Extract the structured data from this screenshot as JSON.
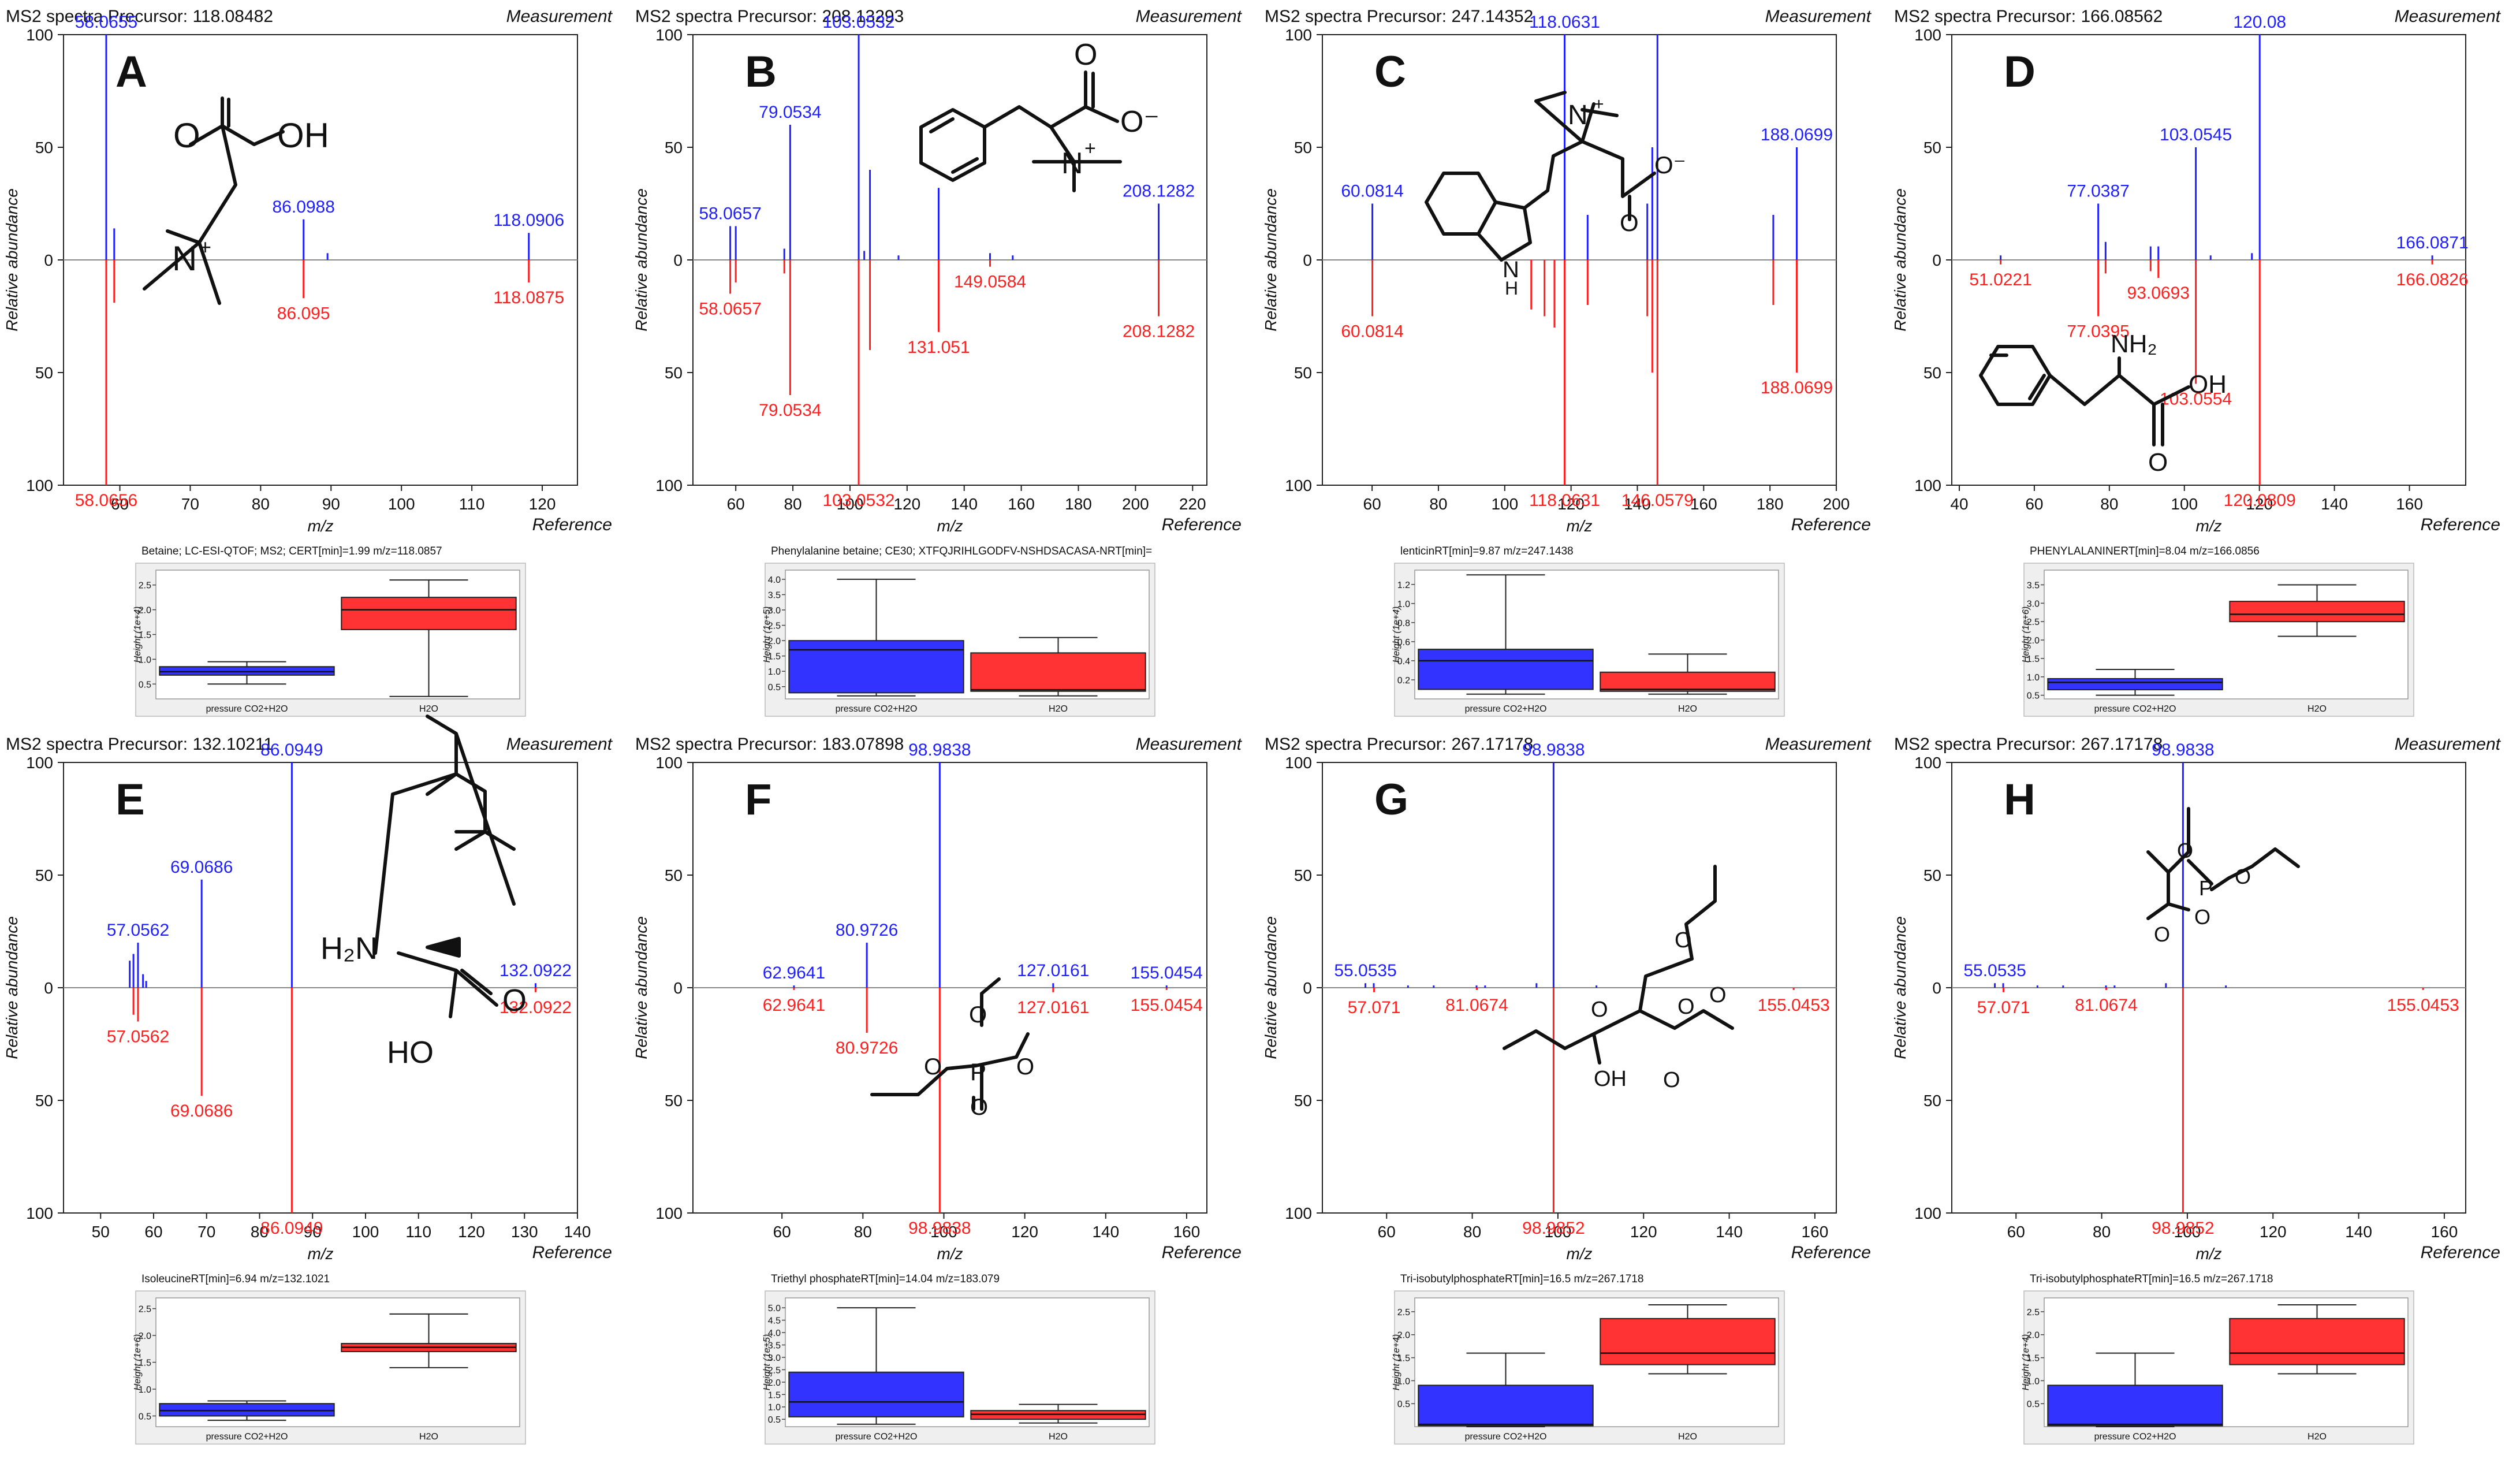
{
  "colors": {
    "measurement": "#1f1fff",
    "reference": "#ff1f1f",
    "group1": "#3333ff",
    "group2": "#ff3333",
    "axis": "#222222",
    "plotBg": "#efefef",
    "zero": "#888888"
  },
  "labels": {
    "measurement": "Measurement",
    "reference": "Reference",
    "xlabel": "m/z",
    "ylabel": "Relative abundance",
    "boxYlabel": "Height",
    "group1": "pressure CO2+H2O",
    "group2": "H2O"
  },
  "chart_data": [
    {
      "panel": "A",
      "type": "bar",
      "title": "MS2 spectra Precursor: 118.08482",
      "xlim": [
        52,
        125
      ],
      "xticks": [
        60,
        70,
        80,
        90,
        100,
        110,
        120
      ],
      "ylim": [
        -100,
        100
      ],
      "yticks": [
        100,
        50,
        0,
        50,
        100
      ],
      "measurement": [
        {
          "mz": 58.0655,
          "int": 100,
          "label": "58.0655"
        },
        {
          "mz": 59.2,
          "int": 14
        },
        {
          "mz": 86.0988,
          "int": 18,
          "label": "86.0988"
        },
        {
          "mz": 89.5,
          "int": 3
        },
        {
          "mz": 118.0906,
          "int": 12,
          "label": "118.0906"
        }
      ],
      "reference": [
        {
          "mz": 58.0656,
          "int": 100,
          "label": "58.0656"
        },
        {
          "mz": 59.2,
          "int": 19
        },
        {
          "mz": 86.095,
          "int": 17,
          "label": "86.095"
        },
        {
          "mz": 118.0875,
          "int": 10,
          "label": "118.0875"
        }
      ],
      "compound": "Betaine; LC-ESI-QTOF; MS2; CERT[min]=1.99 m/z=118.0857",
      "box": {
        "ylabel_unit": "(1e+4)",
        "yticks": [
          "0.5",
          "1.0",
          "1.5",
          "2.0",
          "2.5"
        ],
        "ylim": [
          0.2,
          2.8
        ],
        "groups": [
          {
            "name": "pressure CO2+H2O",
            "min": 0.5,
            "q1": 0.68,
            "median": 0.75,
            "q3": 0.85,
            "max": 0.95
          },
          {
            "name": "H2O",
            "min": 0.25,
            "q1": 1.6,
            "median": 2.0,
            "q3": 2.25,
            "max": 2.6
          }
        ]
      }
    },
    {
      "panel": "B",
      "type": "bar",
      "title": "MS2 spectra Precursor: 208.13293",
      "xlim": [
        45,
        225
      ],
      "xticks": [
        60,
        80,
        100,
        120,
        140,
        160,
        180,
        200,
        220
      ],
      "ylim": [
        -100,
        100
      ],
      "yticks": [
        100,
        50,
        0,
        50,
        100
      ],
      "measurement": [
        {
          "mz": 58.0657,
          "int": 15,
          "label": "58.0657"
        },
        {
          "mz": 60,
          "int": 15
        },
        {
          "mz": 77,
          "int": 5
        },
        {
          "mz": 79.0534,
          "int": 60,
          "label": "79.0534"
        },
        {
          "mz": 103.0532,
          "int": 100,
          "label": "103.0532"
        },
        {
          "mz": 105,
          "int": 4
        },
        {
          "mz": 107,
          "int": 40
        },
        {
          "mz": 117,
          "int": 2
        },
        {
          "mz": 131.051,
          "int": 32
        },
        {
          "mz": 149.0584,
          "int": 3
        },
        {
          "mz": 157,
          "int": 2
        },
        {
          "mz": 208.1282,
          "int": 25,
          "label": "208.1282"
        }
      ],
      "reference": [
        {
          "mz": 58.0657,
          "int": 15,
          "label": "58.0657"
        },
        {
          "mz": 60,
          "int": 10
        },
        {
          "mz": 77,
          "int": 6
        },
        {
          "mz": 79.0534,
          "int": 60,
          "label": "79.0534"
        },
        {
          "mz": 103.0532,
          "int": 100,
          "label": "103.0532"
        },
        {
          "mz": 107,
          "int": 40
        },
        {
          "mz": 131.051,
          "int": 32,
          "label": "131.051"
        },
        {
          "mz": 149.0584,
          "int": 3,
          "label": "149.0584"
        },
        {
          "mz": 208.1282,
          "int": 25,
          "label": "208.1282"
        }
      ],
      "compound": "Phenylalanine betaine; CE30; XTFQJRIHLGODFV-NSHDSACASA-NRT[min]=",
      "box": {
        "ylabel_unit": "(1e+5)",
        "yticks": [
          "0.5",
          "1.0",
          "1.5",
          "2.0",
          "2.5",
          "3.0",
          "3.5",
          "4.0"
        ],
        "ylim": [
          0.1,
          4.3
        ],
        "groups": [
          {
            "name": "pressure CO2+H2O",
            "min": 0.2,
            "q1": 0.3,
            "median": 1.7,
            "q3": 2.0,
            "max": 4.0
          },
          {
            "name": "H2O",
            "min": 0.2,
            "q1": 0.35,
            "median": 0.4,
            "q3": 1.6,
            "max": 2.1
          }
        ]
      }
    },
    {
      "panel": "C",
      "type": "bar",
      "title": "MS2 spectra Precursor: 247.14352",
      "xlim": [
        45,
        200
      ],
      "xticks": [
        60,
        80,
        100,
        120,
        140,
        160,
        180,
        200
      ],
      "ylim": [
        -100,
        100
      ],
      "yticks": [
        100,
        50,
        0,
        50,
        100
      ],
      "measurement": [
        {
          "mz": 60.0814,
          "int": 25,
          "label": "60.0814"
        },
        {
          "mz": 118.0631,
          "int": 100,
          "label": "118.0631"
        },
        {
          "mz": 125,
          "int": 20
        },
        {
          "mz": 143,
          "int": 25
        },
        {
          "mz": 144.5,
          "int": 50
        },
        {
          "mz": 146.0579,
          "int": 100
        },
        {
          "mz": 181,
          "int": 20
        },
        {
          "mz": 188.0699,
          "int": 50,
          "label": "188.0699"
        }
      ],
      "reference": [
        {
          "mz": 60.0814,
          "int": 25,
          "label": "60.0814"
        },
        {
          "mz": 108,
          "int": 22
        },
        {
          "mz": 112,
          "int": 25
        },
        {
          "mz": 115,
          "int": 30
        },
        {
          "mz": 118.0631,
          "int": 100,
          "label": "118.0631"
        },
        {
          "mz": 125,
          "int": 20
        },
        {
          "mz": 143,
          "int": 25
        },
        {
          "mz": 144.5,
          "int": 50
        },
        {
          "mz": 146.0579,
          "int": 100,
          "label": "146.0579"
        },
        {
          "mz": 181,
          "int": 20
        },
        {
          "mz": 188.0699,
          "int": 50,
          "label": "188.0699"
        }
      ],
      "compound": "lenticinRT[min]=9.87 m/z=247.1438",
      "box": {
        "ylabel_unit": "(1e+4)",
        "yticks": [
          "0.2",
          "0.4",
          "0.6",
          "0.8",
          "1.0",
          "1.2"
        ],
        "ylim": [
          0.0,
          1.35
        ],
        "groups": [
          {
            "name": "pressure CO2+H2O",
            "min": 0.05,
            "q1": 0.1,
            "median": 0.4,
            "q3": 0.52,
            "max": 1.3
          },
          {
            "name": "H2O",
            "min": 0.05,
            "q1": 0.08,
            "median": 0.1,
            "q3": 0.28,
            "max": 0.47
          }
        ]
      }
    },
    {
      "panel": "D",
      "type": "bar",
      "title": "MS2 spectra Precursor: 166.08562",
      "xlim": [
        38,
        175
      ],
      "xticks": [
        40,
        60,
        80,
        100,
        120,
        140,
        160
      ],
      "ylim": [
        -100,
        100
      ],
      "yticks": [
        100,
        50,
        0,
        50,
        100
      ],
      "measurement": [
        {
          "mz": 51.0221,
          "int": 2
        },
        {
          "mz": 77.0387,
          "int": 25,
          "label": "77.0387"
        },
        {
          "mz": 79,
          "int": 8
        },
        {
          "mz": 91,
          "int": 6
        },
        {
          "mz": 93.0693,
          "int": 6
        },
        {
          "mz": 103.0545,
          "int": 50,
          "label": "103.0545"
        },
        {
          "mz": 107,
          "int": 2
        },
        {
          "mz": 118,
          "int": 3
        },
        {
          "mz": 120.08,
          "int": 100,
          "label": "120.08"
        },
        {
          "mz": 166.0871,
          "int": 2,
          "label": "166.0871"
        }
      ],
      "reference": [
        {
          "mz": 51.0221,
          "int": 2,
          "label": "51.0221"
        },
        {
          "mz": 77.0395,
          "int": 25,
          "label": "77.0395"
        },
        {
          "mz": 79,
          "int": 6
        },
        {
          "mz": 91,
          "int": 5
        },
        {
          "mz": 93.0693,
          "int": 8,
          "label": "93.0693"
        },
        {
          "mz": 103.0554,
          "int": 55,
          "label": "103.0554"
        },
        {
          "mz": 120.0809,
          "int": 100,
          "label": "120.0809"
        },
        {
          "mz": 166.0826,
          "int": 2,
          "label": "166.0826"
        }
      ],
      "compound": "PHENYLALANINERT[min]=8.04 m/z=166.0856",
      "box": {
        "ylabel_unit": "(1e+6)",
        "yticks": [
          "0.5",
          "1.0",
          "1.5",
          "2.0",
          "2.5",
          "3.0",
          "3.5"
        ],
        "ylim": [
          0.4,
          3.9
        ],
        "groups": [
          {
            "name": "pressure CO2+H2O",
            "min": 0.5,
            "q1": 0.65,
            "median": 0.85,
            "q3": 0.95,
            "max": 1.2
          },
          {
            "name": "H2O",
            "min": 2.1,
            "q1": 2.5,
            "median": 2.7,
            "q3": 3.05,
            "max": 3.5
          }
        ]
      }
    },
    {
      "panel": "E",
      "type": "bar",
      "title": "MS2 spectra Precursor: 132.10211",
      "xlim": [
        43,
        140
      ],
      "xticks": [
        50,
        60,
        70,
        80,
        90,
        100,
        110,
        120,
        130,
        140
      ],
      "ylim": [
        -100,
        100
      ],
      "yticks": [
        100,
        50,
        0,
        50,
        100
      ],
      "measurement": [
        {
          "mz": 55.5,
          "int": 12
        },
        {
          "mz": 56.2,
          "int": 15
        },
        {
          "mz": 57.0562,
          "int": 20,
          "label": "57.0562"
        },
        {
          "mz": 58,
          "int": 6
        },
        {
          "mz": 58.6,
          "int": 3
        },
        {
          "mz": 69.0686,
          "int": 48,
          "label": "69.0686"
        },
        {
          "mz": 86.0949,
          "int": 100,
          "label": "86.0949"
        },
        {
          "mz": 132.0922,
          "int": 2,
          "label": "132.0922"
        }
      ],
      "reference": [
        {
          "mz": 56.2,
          "int": 12
        },
        {
          "mz": 57.0562,
          "int": 15,
          "label": "57.0562"
        },
        {
          "mz": 69.0686,
          "int": 48,
          "label": "69.0686"
        },
        {
          "mz": 86.0949,
          "int": 100,
          "label": "86.0949"
        },
        {
          "mz": 132.0922,
          "int": 2,
          "label": "132.0922"
        }
      ],
      "compound": "IsoleucineRT[min]=6.94 m/z=132.1021",
      "box": {
        "ylabel_unit": "(1e+6)",
        "yticks": [
          "0.5",
          "1.0",
          "1.5",
          "2.0",
          "2.5"
        ],
        "ylim": [
          0.3,
          2.7
        ],
        "groups": [
          {
            "name": "pressure CO2+H2O",
            "min": 0.42,
            "q1": 0.5,
            "median": 0.6,
            "q3": 0.73,
            "max": 0.78
          },
          {
            "name": "H2O",
            "min": 1.4,
            "q1": 1.7,
            "median": 1.78,
            "q3": 1.85,
            "max": 2.4
          }
        ]
      }
    },
    {
      "panel": "F",
      "type": "bar",
      "title": "MS2 spectra Precursor: 183.07898",
      "xlim": [
        38,
        165
      ],
      "xticks": [
        60,
        80,
        100,
        120,
        140,
        160
      ],
      "ylim": [
        -100,
        100
      ],
      "yticks": [
        100,
        50,
        0,
        50,
        100
      ],
      "measurement": [
        {
          "mz": 62.9641,
          "int": 1,
          "label": "62.9641"
        },
        {
          "mz": 80.9726,
          "int": 20,
          "label": "80.9726"
        },
        {
          "mz": 98.9838,
          "int": 100,
          "label": "98.9838"
        },
        {
          "mz": 127.0161,
          "int": 2,
          "label": "127.0161"
        },
        {
          "mz": 155.0454,
          "int": 1,
          "label": "155.0454"
        }
      ],
      "reference": [
        {
          "mz": 62.9641,
          "int": 1,
          "label": "62.9641"
        },
        {
          "mz": 80.9726,
          "int": 20,
          "label": "80.9726"
        },
        {
          "mz": 98.9838,
          "int": 100,
          "label": "98.9838"
        },
        {
          "mz": 127.0161,
          "int": 2,
          "label": "127.0161"
        },
        {
          "mz": 155.0454,
          "int": 1,
          "label": "155.0454"
        }
      ],
      "compound": "Triethyl phosphateRT[min]=14.04 m/z=183.079",
      "box": {
        "ylabel_unit": "(1e+5)",
        "yticks": [
          "0.5",
          "1.0",
          "1.5",
          "2.0",
          "2.5",
          "3.0",
          "3.5",
          "4.0",
          "4.5",
          "5.0"
        ],
        "ylim": [
          0.2,
          5.4
        ],
        "groups": [
          {
            "name": "pressure CO2+H2O",
            "min": 0.3,
            "q1": 0.6,
            "median": 1.2,
            "q3": 2.4,
            "max": 5.0
          },
          {
            "name": "H2O",
            "min": 0.35,
            "q1": 0.5,
            "median": 0.7,
            "q3": 0.85,
            "max": 1.1
          }
        ]
      }
    },
    {
      "panel": "G",
      "type": "bar",
      "title": "MS2 spectra Precursor: 267.17178",
      "xlim": [
        45,
        165
      ],
      "xticks": [
        60,
        80,
        100,
        120,
        140,
        160
      ],
      "ylim": [
        -100,
        100
      ],
      "yticks": [
        100,
        50,
        0,
        50,
        100
      ],
      "measurement": [
        {
          "mz": 55.0535,
          "int": 2,
          "label": "55.0535"
        },
        {
          "mz": 57,
          "int": 2
        },
        {
          "mz": 65,
          "int": 1
        },
        {
          "mz": 71,
          "int": 1
        },
        {
          "mz": 81,
          "int": 1
        },
        {
          "mz": 83,
          "int": 1
        },
        {
          "mz": 95,
          "int": 2
        },
        {
          "mz": 98.9838,
          "int": 100,
          "label": "98.9838"
        },
        {
          "mz": 109,
          "int": 1
        }
      ],
      "reference": [
        {
          "mz": 57.071,
          "int": 2,
          "label": "57.071"
        },
        {
          "mz": 81.0674,
          "int": 1,
          "label": "81.0674"
        },
        {
          "mz": 98.9852,
          "int": 100,
          "label": "98.9852"
        },
        {
          "mz": 155.0453,
          "int": 1,
          "label": "155.0453"
        }
      ],
      "compound": "Tri-isobutylphosphateRT[min]=16.5 m/z=267.1718",
      "box": {
        "ylabel_unit": "(1e+4)",
        "yticks": [
          "0.5",
          "1.0",
          "1.5",
          "2.0",
          "2.5"
        ],
        "ylim": [
          0.0,
          2.8
        ],
        "groups": [
          {
            "name": "pressure CO2+H2O",
            "min": 0.0,
            "q1": 0.02,
            "median": 0.05,
            "q3": 0.9,
            "max": 1.6
          },
          {
            "name": "H2O",
            "min": 1.15,
            "q1": 1.35,
            "median": 1.6,
            "q3": 2.35,
            "max": 2.65
          }
        ]
      }
    },
    {
      "panel": "H",
      "type": "bar",
      "title": "MS2 spectra Precursor: 267.17178",
      "xlim": [
        45,
        165
      ],
      "xticks": [
        60,
        80,
        100,
        120,
        140,
        160
      ],
      "ylim": [
        -100,
        100
      ],
      "yticks": [
        100,
        50,
        0,
        50,
        100
      ],
      "measurement": [
        {
          "mz": 55.0535,
          "int": 2,
          "label": "55.0535"
        },
        {
          "mz": 57,
          "int": 2
        },
        {
          "mz": 65,
          "int": 1
        },
        {
          "mz": 71,
          "int": 1
        },
        {
          "mz": 81,
          "int": 1
        },
        {
          "mz": 83,
          "int": 1
        },
        {
          "mz": 95,
          "int": 2
        },
        {
          "mz": 98.9838,
          "int": 100,
          "label": "98.9838"
        },
        {
          "mz": 109,
          "int": 1
        }
      ],
      "reference": [
        {
          "mz": 57.071,
          "int": 2,
          "label": "57.071"
        },
        {
          "mz": 81.0674,
          "int": 1,
          "label": "81.0674"
        },
        {
          "mz": 98.9852,
          "int": 100,
          "label": "98.9852"
        },
        {
          "mz": 155.0453,
          "int": 1,
          "label": "155.0453"
        }
      ],
      "compound": "Tri-isobutylphosphateRT[min]=16.5 m/z=267.1718",
      "box": {
        "ylabel_unit": "(1e+4)",
        "yticks": [
          "0.5",
          "1.0",
          "1.5",
          "2.0",
          "2.5"
        ],
        "ylim": [
          0.0,
          2.8
        ],
        "groups": [
          {
            "name": "pressure CO2+H2O",
            "min": 0.0,
            "q1": 0.02,
            "median": 0.05,
            "q3": 0.9,
            "max": 1.6
          },
          {
            "name": "H2O",
            "min": 1.15,
            "q1": 1.35,
            "median": 1.6,
            "q3": 2.35,
            "max": 2.65
          }
        ]
      }
    }
  ]
}
